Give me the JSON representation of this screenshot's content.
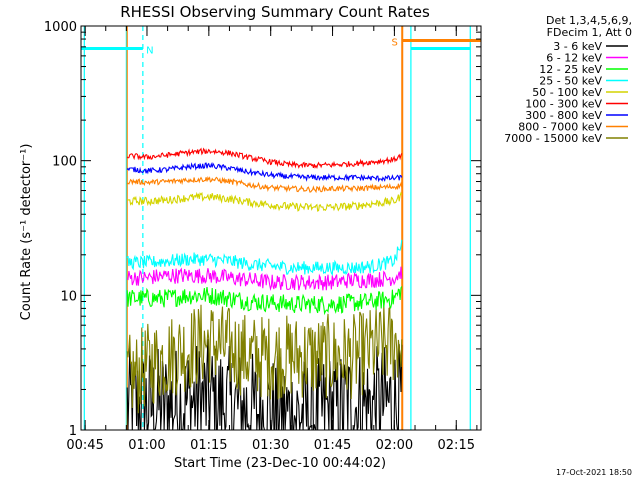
{
  "chart_data": {
    "type": "line",
    "title": "RHESSI Observing Summary Count Rates",
    "xlabel": "Start Time (23-Dec-10 00:44:02)",
    "ylabel": "Count Rate (s⁻¹ detector⁻¹)",
    "y_scale": "log",
    "ylim": [
      1,
      1000
    ],
    "xlim": [
      44.0,
      141.0
    ],
    "x_unit": "minutes after 00:00 UT",
    "x_ticks": [
      {
        "value": 45,
        "label": "00:45"
      },
      {
        "value": 60,
        "label": "01:00"
      },
      {
        "value": 75,
        "label": "01:15"
      },
      {
        "value": 90,
        "label": "01:30"
      },
      {
        "value": 105,
        "label": "01:45"
      },
      {
        "value": 120,
        "label": "02:00"
      },
      {
        "value": 135,
        "label": "02:15"
      }
    ],
    "y_ticks": [
      {
        "value": 1,
        "label": "1"
      },
      {
        "value": 10,
        "label": "10"
      },
      {
        "value": 100,
        "label": "100"
      },
      {
        "value": 1000,
        "label": "1000"
      }
    ],
    "legend_header": [
      "Det 1,3,4,5,6,9,",
      "FDecim 1, Att 0"
    ],
    "series": [
      {
        "name": "3 - 6 keV",
        "color": "#000000",
        "x": [
          55.2,
          57,
          60,
          65,
          70,
          75,
          80,
          85,
          90,
          95,
          100,
          105,
          110,
          115,
          120,
          121.8
        ],
        "values": [
          1.5,
          1.5,
          1.5,
          1.5,
          1.6,
          1.7,
          1.5,
          1.4,
          1.3,
          1.3,
          1.3,
          1.4,
          1.5,
          1.5,
          1.6,
          1.6
        ],
        "spread": 0.45
      },
      {
        "name": "6 - 12 keV",
        "color": "#ff00ff",
        "x": [
          55.2,
          57,
          60,
          65,
          70,
          75,
          80,
          85,
          90,
          95,
          100,
          105,
          110,
          115,
          120,
          121.8
        ],
        "values": [
          13.5,
          13.5,
          13.5,
          14,
          14,
          14,
          13.5,
          13,
          12.5,
          12.5,
          12.5,
          12.5,
          13,
          13,
          13.5,
          15
        ],
        "spread": 0.06
      },
      {
        "name": "12 - 25 keV",
        "color": "#00ff00",
        "x": [
          55.2,
          57,
          60,
          65,
          70,
          75,
          80,
          85,
          90,
          95,
          100,
          105,
          110,
          115,
          120,
          121.8
        ],
        "values": [
          9.5,
          9.5,
          9.5,
          9.5,
          10,
          10,
          9.5,
          9,
          8.8,
          8.6,
          8.6,
          8.6,
          8.8,
          9,
          9.5,
          11
        ],
        "spread": 0.07
      },
      {
        "name": "25 - 50 keV",
        "color": "#00ffff",
        "x": [
          55.2,
          57,
          60,
          65,
          70,
          75,
          80,
          85,
          90,
          95,
          100,
          105,
          110,
          115,
          120,
          121.8
        ],
        "values": [
          17.5,
          17.5,
          17.5,
          18,
          18.5,
          18.5,
          18,
          17,
          16.5,
          16,
          16,
          16,
          16,
          16.5,
          18,
          24
        ],
        "spread": 0.05
      },
      {
        "name": "50 - 100 keV",
        "color": "#d4d400",
        "x": [
          55.2,
          57,
          60,
          65,
          70,
          75,
          80,
          85,
          90,
          95,
          100,
          105,
          110,
          115,
          120,
          121.8
        ],
        "values": [
          50,
          50,
          50,
          51,
          53,
          54,
          52,
          49,
          47,
          45.5,
          45,
          45,
          46,
          48,
          50,
          55
        ],
        "spread": 0.03
      },
      {
        "name": "100 - 300 keV",
        "color": "#ff0000",
        "x": [
          55.2,
          57,
          60,
          65,
          70,
          75,
          80,
          85,
          90,
          95,
          100,
          105,
          110,
          115,
          120,
          121.8
        ],
        "values": [
          108,
          108,
          106,
          110,
          115,
          118,
          114,
          105,
          98,
          93,
          92,
          93,
          95,
          98,
          102,
          110
        ],
        "spread": 0.02
      },
      {
        "name": "300 - 800 keV",
        "color": "#0000ff",
        "x": [
          55.2,
          57,
          60,
          65,
          70,
          75,
          80,
          85,
          90,
          95,
          100,
          105,
          110,
          115,
          120,
          121.8
        ],
        "values": [
          86,
          86,
          84,
          86,
          90,
          92,
          88,
          82,
          78,
          76,
          75,
          75,
          75,
          74,
          74,
          75
        ],
        "spread": 0.02
      },
      {
        "name": "800 - 7000 keV",
        "color": "#ff8000",
        "x": [
          55.2,
          57,
          60,
          65,
          70,
          75,
          80,
          85,
          90,
          95,
          100,
          105,
          110,
          115,
          120,
          121.8
        ],
        "values": [
          70,
          70,
          69,
          70,
          72,
          73,
          70,
          66,
          63,
          62,
          61,
          62,
          62,
          63,
          64,
          66
        ],
        "spread": 0.02
      },
      {
        "name": "7000 - 15000 keV",
        "color": "#808000",
        "x": [
          55.2,
          57,
          60,
          65,
          70,
          75,
          80,
          85,
          90,
          95,
          100,
          105,
          110,
          115,
          120,
          121.8
        ],
        "values": [
          2.5,
          2.5,
          3,
          3.5,
          4,
          4.5,
          4,
          3.5,
          3.5,
          3.5,
          3.5,
          3.5,
          3.5,
          4,
          4.5,
          4.5
        ],
        "spread": 0.32
      }
    ],
    "flags": [
      {
        "label": "N",
        "color": "#00ffff",
        "x_start": 44.0,
        "x_end": 59.0,
        "level": 680,
        "vline_dashed": 59.0
      },
      {
        "label": "S",
        "color": "#ff8000",
        "x_start": 122.0,
        "x_end": 141.0,
        "level": 780,
        "vline_solid": 122.0
      }
    ],
    "attenuator_lines": [
      {
        "color": "#00ffff",
        "x": 44.8
      },
      {
        "color": "#00ffff",
        "x": 55.0
      },
      {
        "color": "#ff8000",
        "x": 55.2
      },
      {
        "color": "#ff8000",
        "x": 121.8
      },
      {
        "color": "#00ffff",
        "x": 124.0
      },
      {
        "color": "#00ffff",
        "x": 138.4
      }
    ],
    "cyan_segments": [
      {
        "x_start": 124.0,
        "x_end": 138.4,
        "level": 680
      }
    ]
  },
  "footer_date": "17-Oct-2021 18:50"
}
